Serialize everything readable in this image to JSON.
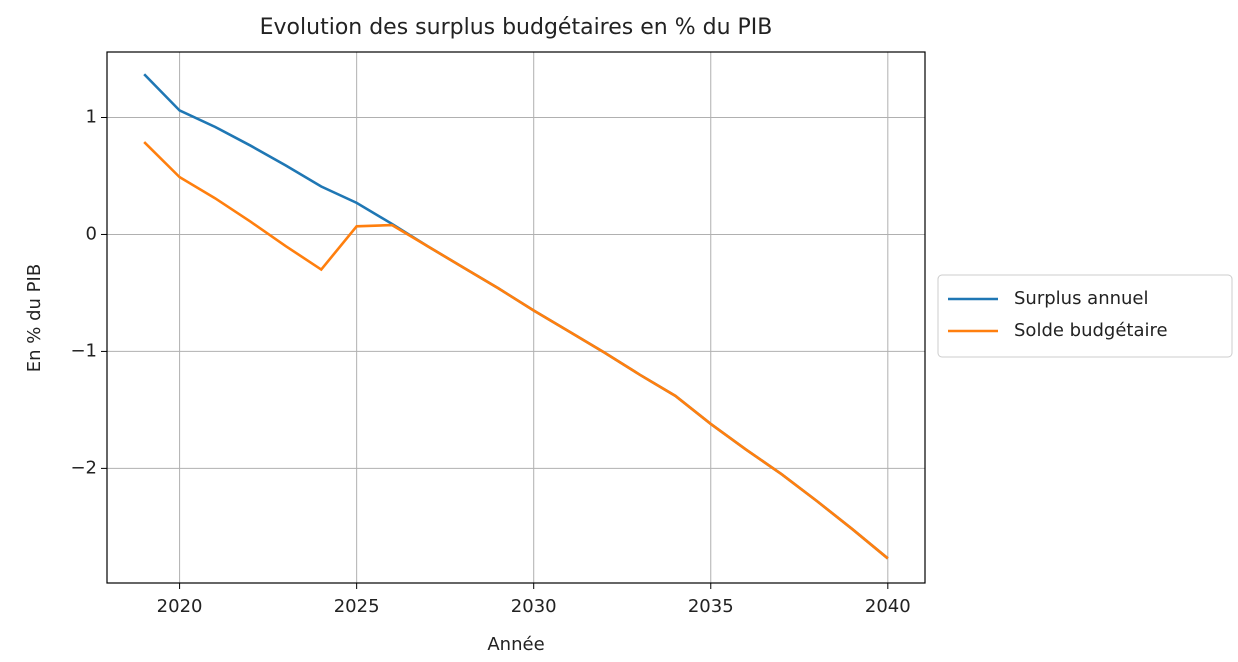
{
  "chart_data": {
    "type": "line",
    "title": "Evolution des surplus budgétaires en % du PIB",
    "x_label": "Année",
    "y_label": "En % du PIB",
    "x": [
      2019,
      2020,
      2021,
      2022,
      2023,
      2024,
      2025,
      2026,
      2027,
      2028,
      2029,
      2030,
      2031,
      2032,
      2033,
      2034,
      2035,
      2036,
      2037,
      2038,
      2039,
      2040
    ],
    "series": [
      {
        "name": "Surplus annuel",
        "color": "#1f77b4",
        "values": [
          1.37,
          1.06,
          0.92,
          0.76,
          0.59,
          0.41,
          0.27,
          0.09,
          -0.1,
          -0.28,
          -0.46,
          -0.65,
          -0.83,
          -1.01,
          -1.2,
          -1.38,
          -1.62,
          -1.84,
          -2.05,
          -2.28,
          -2.52,
          -2.77
        ]
      },
      {
        "name": "Solde budgétaire",
        "color": "#ff7f0e",
        "values": [
          0.79,
          0.49,
          0.31,
          0.11,
          -0.1,
          -0.3,
          0.07,
          0.08,
          -0.1,
          -0.28,
          -0.46,
          -0.65,
          -0.83,
          -1.01,
          -1.2,
          -1.38,
          -1.62,
          -1.84,
          -2.05,
          -2.28,
          -2.52,
          -2.77
        ]
      }
    ],
    "xlim": [
      2017.95,
      2041.05
    ],
    "xticks": [
      2020,
      2025,
      2030,
      2035,
      2040
    ],
    "ylim": [
      -2.98,
      1.56
    ],
    "yticks": [
      {
        "value": -2,
        "label": "−2"
      },
      {
        "value": -1,
        "label": "−1"
      },
      0,
      1
    ],
    "grid": true,
    "legend": "outside right"
  }
}
